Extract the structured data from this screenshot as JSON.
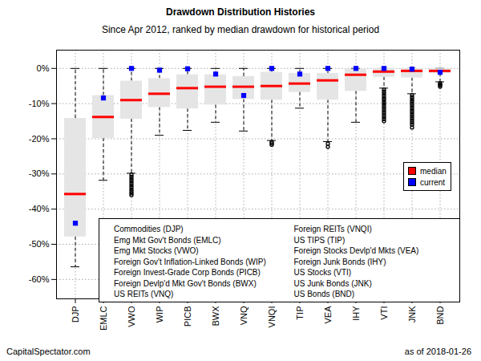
{
  "chart_data": {
    "type": "boxplot",
    "title": "Drawdown Distribution Histories",
    "subtitle": "Since Apr 2012, ranked by median drawdown for historical period",
    "categories": [
      "DJP",
      "EMLC",
      "VWO",
      "WIP",
      "PICB",
      "BWX",
      "VNQ",
      "VNQI",
      "TIP",
      "VEA",
      "IHY",
      "VTI",
      "JNK",
      "BND"
    ],
    "box_high": [
      -14.2,
      -7.7,
      -3.6,
      -2.9,
      -1.8,
      -1.8,
      -2.3,
      -1.1,
      -1.4,
      -1.4,
      -0.2,
      0,
      0,
      -0.1
    ],
    "box_low": [
      -47.9,
      -19.9,
      -14.4,
      -11.1,
      -11.5,
      -10.4,
      -8.8,
      -9.0,
      -6.8,
      -9.0,
      -6.5,
      -2.5,
      -2.7,
      -1.4
    ],
    "whisker_high": [
      0,
      0,
      0,
      0,
      0,
      0,
      0,
      0,
      0,
      0,
      0,
      0,
      0,
      0
    ],
    "whisker_low": [
      -56.4,
      -31.8,
      -29.8,
      -19.0,
      -17.6,
      -15.3,
      -17.8,
      -20.5,
      -11.3,
      -20.8,
      -15.3,
      -5.6,
      -7.2,
      -3.8
    ],
    "outliers": [
      [],
      [],
      [
        -30.2,
        -30.8,
        -31.4,
        -32.0,
        -32.6,
        -33.2,
        -33.8,
        -34.4,
        -35.0,
        -35.5,
        -36.0
      ],
      [],
      [],
      [],
      [],
      [
        -20.9,
        -21.3,
        -21.7
      ],
      [],
      [
        -21.4,
        -22.3
      ],
      [],
      [
        -6.0,
        -6.6,
        -7.2,
        -7.8,
        -8.4,
        -9.0,
        -9.6,
        -10.2,
        -10.8,
        -11.4,
        -12.0,
        -12.6,
        -13.2,
        -13.8,
        -14.4,
        -15.0
      ],
      [
        -7.6,
        -8.2,
        -8.8,
        -9.4,
        -10.0,
        -10.6,
        -11.2,
        -11.8,
        -12.4,
        -13.0,
        -13.6,
        -14.2,
        -14.8,
        -15.4,
        -16.0,
        -16.8
      ],
      [
        -4.2,
        -4.5,
        -4.8,
        -5.2
      ]
    ],
    "series": [
      {
        "name": "median",
        "color": "#ff0000",
        "type": "tick",
        "values": [
          -35.7,
          -13.8,
          -9.0,
          -7.2,
          -5.6,
          -5.2,
          -5.2,
          -5.0,
          -4.3,
          -3.4,
          -1.8,
          -0.9,
          -0.7,
          -0.7
        ]
      },
      {
        "name": "current",
        "color": "#0000ff",
        "type": "dot",
        "marker": "square",
        "values": [
          -44.0,
          -8.4,
          0,
          -0.5,
          -0.1,
          -1.6,
          -7.7,
          0,
          -1.6,
          0,
          0,
          0,
          -0.2,
          -1.1
        ]
      }
    ],
    "color": "#e5e5e5",
    "ylim": [
      -65.5,
      5.2
    ],
    "yticks": [
      {
        "value": -60,
        "label": "-60%"
      },
      {
        "value": -50,
        "label": "-50%"
      },
      {
        "value": -40,
        "label": "-40%"
      },
      {
        "value": -30,
        "label": "-30%"
      },
      {
        "value": -20,
        "label": "-20%"
      },
      {
        "value": -10,
        "label": "-10%"
      },
      {
        "value": 0,
        "label": "0%"
      }
    ],
    "grid": true,
    "legend": "right",
    "annotations": [
      "Commodities (DJP)",
      "Emg Mkt Gov't Bonds (EMLC)",
      "Emg Mkt Stocks (VWO)",
      "Foreign Gov't Inflation-Linked Bonds (WIP)",
      "Foreign Invest-Grade Corp Bonds (PICB)",
      "Foreign Devlp'd Mkt Gov't Bonds (BWX)",
      "US REITs (VNQ)",
      "Foreign REITs (VNQI)",
      "US TIPS (TIP)",
      "Foreign Stocks Devlp'd Mkts (VEA)",
      "Foreign Junk Bonds (IHY)",
      "US Stocks (VTI)",
      "US Junk Bonds (JNK)",
      "US Bonds (BND)"
    ],
    "footer": [
      "CapitalSpectator.com",
      "as of  2018-01-26"
    ]
  }
}
